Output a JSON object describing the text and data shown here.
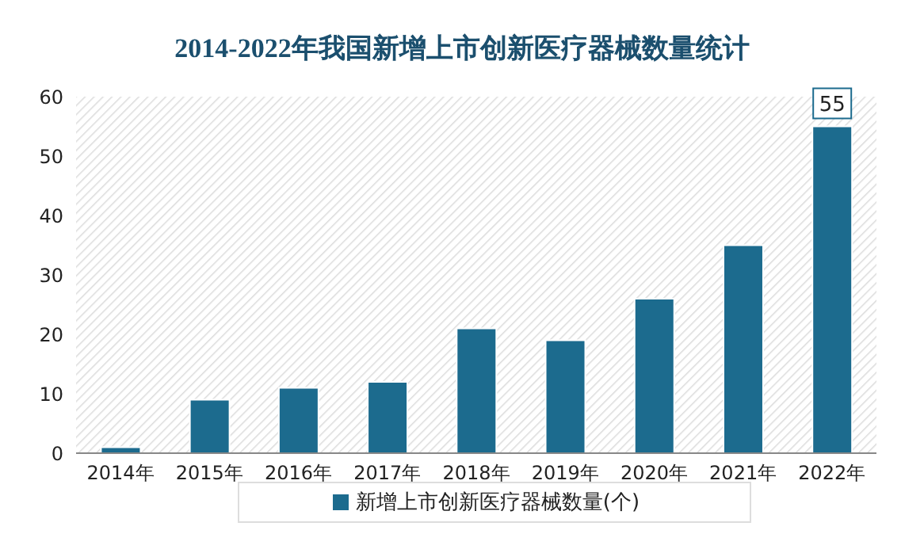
{
  "chart_data": {
    "type": "bar",
    "title": "2014-2022年我国新增上市创新医疗器械数量统计",
    "categories": [
      "2014年",
      "2015年",
      "2016年",
      "2017年",
      "2018年",
      "2019年",
      "2020年",
      "2021年",
      "2022年"
    ],
    "series": [
      {
        "name": "新增上市创新医疗器械数量(个)",
        "color": "#1c6b8e",
        "values": [
          1,
          9,
          11,
          12,
          21,
          19,
          26,
          35,
          55
        ],
        "value_labels": [
          null,
          null,
          null,
          null,
          null,
          null,
          null,
          null,
          "55"
        ]
      }
    ],
    "ylim": [
      0,
      60
    ],
    "yticks": [
      0,
      10,
      20,
      30,
      40,
      50,
      60
    ],
    "grid": false,
    "legend": "bottom"
  }
}
